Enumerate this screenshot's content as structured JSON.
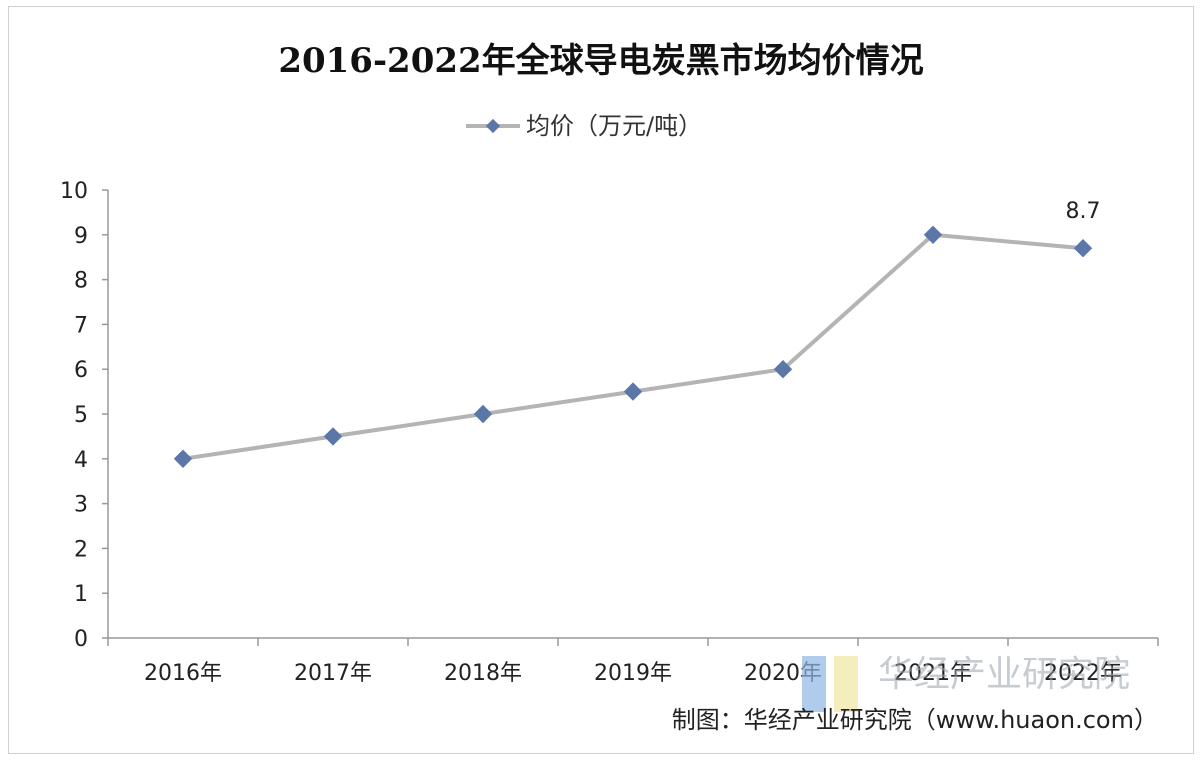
{
  "chart_data": {
    "type": "line",
    "title": "2016-2022年全球导电炭黑市场均价情况",
    "categories": [
      "2016年",
      "2017年",
      "2018年",
      "2019年",
      "2020年",
      "2021年",
      "2022年"
    ],
    "series": [
      {
        "name": "均价（万元/吨）",
        "values": [
          4.0,
          4.5,
          5.0,
          5.5,
          6.0,
          9.0,
          8.7
        ]
      }
    ],
    "data_labels": [
      {
        "index": 6,
        "text": "8.7"
      }
    ],
    "ylim": [
      0,
      10
    ],
    "yticks": [
      "0",
      "1",
      "2",
      "3",
      "4",
      "5",
      "6",
      "7",
      "8",
      "9",
      "10"
    ],
    "xlabel": "",
    "ylabel": "",
    "grid": false,
    "legend_position": "top-center",
    "colors": {
      "line": "#b4b4b4",
      "marker": "#5b77a8",
      "axis": "#999999"
    }
  },
  "footer": {
    "source": "制图：华经产业研究院（www.huaon.com）",
    "watermark": "华经产业研究院"
  }
}
